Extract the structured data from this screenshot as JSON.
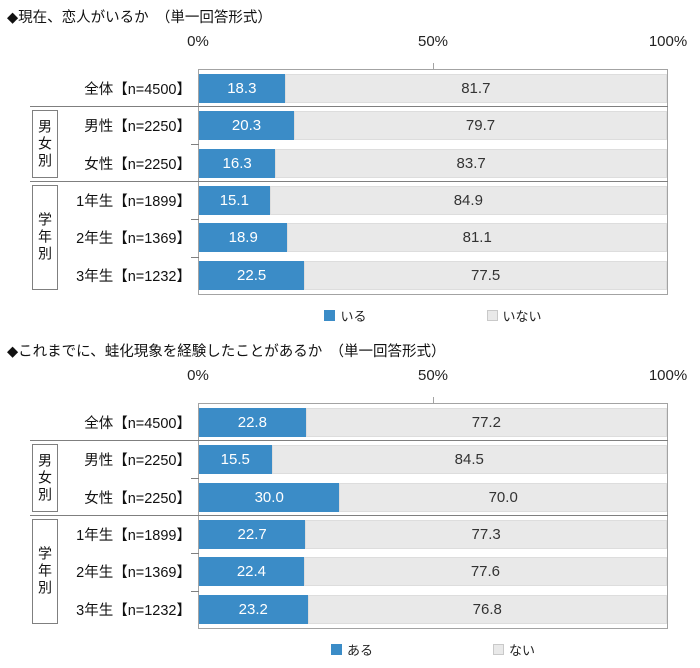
{
  "colors": {
    "bar_yes": "#3b8cc7",
    "bar_no": "#e9e9e9",
    "plot_border": "#a3a3a3",
    "separator": "#7f7f7f",
    "value_on_yes": "#ffffff",
    "value_on_no": "#333333"
  },
  "chart_data": [
    {
      "type": "bar",
      "subtype": "horizontal-stacked-100pct",
      "title": "◆現在、恋人がいるか　（単一回答形式）",
      "x_ticks": [
        "0%",
        "50%",
        "100%"
      ],
      "xlim": [
        0,
        100
      ],
      "legend": {
        "yes": "いる",
        "no": "いない",
        "position": "bottom"
      },
      "group_boxes": [
        {
          "label": "男女別"
        },
        {
          "label": "学年別"
        }
      ],
      "rows": [
        {
          "label": "全体【n=4500】",
          "values": [
            18.3,
            81.7
          ],
          "value_texts": [
            "18.3",
            "81.7"
          ]
        },
        {
          "label": "男性【n=2250】",
          "values": [
            20.3,
            79.7
          ],
          "value_texts": [
            "20.3",
            "79.7"
          ]
        },
        {
          "label": "女性【n=2250】",
          "values": [
            16.3,
            83.7
          ],
          "value_texts": [
            "16.3",
            "83.7"
          ]
        },
        {
          "label": "1年生【n=1899】",
          "values": [
            15.1,
            84.9
          ],
          "value_texts": [
            "15.1",
            "84.9"
          ]
        },
        {
          "label": "2年生【n=1369】",
          "values": [
            18.9,
            81.1
          ],
          "value_texts": [
            "18.9",
            "81.1"
          ]
        },
        {
          "label": "3年生【n=1232】",
          "values": [
            22.5,
            77.5
          ],
          "value_texts": [
            "22.5",
            "77.5"
          ]
        }
      ]
    },
    {
      "type": "bar",
      "subtype": "horizontal-stacked-100pct",
      "title": "◆これまでに、蛙化現象を経験したことがあるか　（単一回答形式）",
      "x_ticks": [
        "0%",
        "50%",
        "100%"
      ],
      "xlim": [
        0,
        100
      ],
      "legend": {
        "yes": "ある",
        "no": "ない",
        "position": "bottom"
      },
      "group_boxes": [
        {
          "label": "男女別"
        },
        {
          "label": "学年別"
        }
      ],
      "rows": [
        {
          "label": "全体【n=4500】",
          "values": [
            22.8,
            77.2
          ],
          "value_texts": [
            "22.8",
            "77.2"
          ]
        },
        {
          "label": "男性【n=2250】",
          "values": [
            15.5,
            84.5
          ],
          "value_texts": [
            "15.5",
            "84.5"
          ]
        },
        {
          "label": "女性【n=2250】",
          "values": [
            30.0,
            70.0
          ],
          "value_texts": [
            "30.0",
            "70.0"
          ]
        },
        {
          "label": "1年生【n=1899】",
          "values": [
            22.7,
            77.3
          ],
          "value_texts": [
            "22.7",
            "77.3"
          ]
        },
        {
          "label": "2年生【n=1369】",
          "values": [
            22.4,
            77.6
          ],
          "value_texts": [
            "22.4",
            "77.6"
          ]
        },
        {
          "label": "3年生【n=1232】",
          "values": [
            23.2,
            76.8
          ],
          "value_texts": [
            "23.2",
            "76.8"
          ]
        }
      ]
    }
  ]
}
